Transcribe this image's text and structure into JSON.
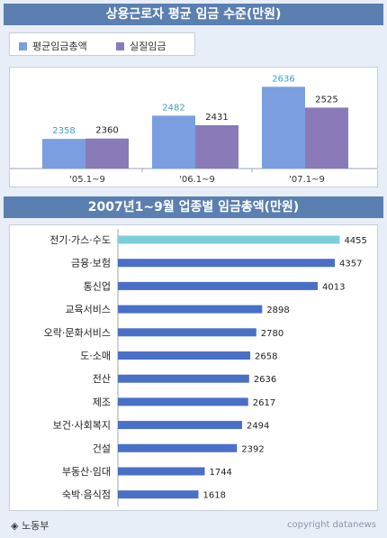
{
  "colors": {
    "header_bg": "#5b7fb0",
    "page_bg": "#e8eef8",
    "series1": "#7b9ee0",
    "series2": "#8a7ab8",
    "highlight_bar": "#7ccfd9",
    "bar": "#4a6fc7",
    "value_label_s1": "#3aa0c8",
    "value_label_dark": "#222222"
  },
  "chart_data": [
    {
      "type": "bar",
      "title": "상용근로자 평균 임금 수준(만원)",
      "categories": [
        "'05.1~9",
        "'06.1~9",
        "'07.1~9"
      ],
      "series": [
        {
          "name": "평균임금총액",
          "values": [
            2358,
            2482,
            2636
          ]
        },
        {
          "name": "실질임금",
          "values": [
            2360,
            2431,
            2525
          ]
        }
      ],
      "legend": "top-left",
      "ylim": [
        2200,
        2700
      ]
    },
    {
      "type": "bar",
      "orientation": "horizontal",
      "title": "2007년1~9월 업종별 임금총액(만원)",
      "categories": [
        "전기·가스·수도",
        "금융·보험",
        "통신업",
        "교육서비스",
        "오락·문화서비스",
        "도·소매",
        "전산",
        "제조",
        "보건·사회복지",
        "건설",
        "부동산·임대",
        "숙박·음식점"
      ],
      "values": [
        4455,
        4357,
        4013,
        2898,
        2780,
        2658,
        2636,
        2617,
        2494,
        2392,
        1744,
        1618
      ],
      "highlight_index": 0,
      "xlim": [
        0,
        4700
      ]
    }
  ],
  "footer": {
    "source": "◈ 노동부",
    "credit": "copyright datanews"
  }
}
